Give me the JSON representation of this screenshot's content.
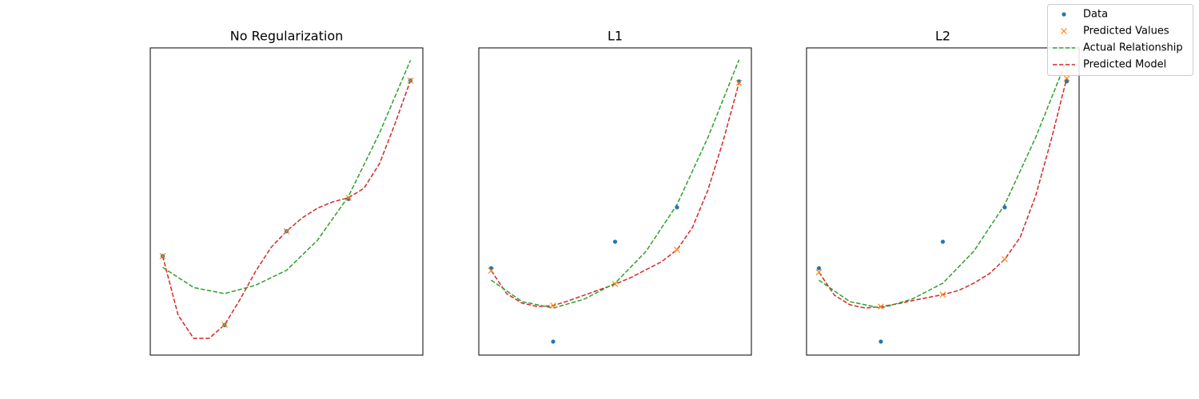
{
  "chart_data": [
    {
      "type": "line",
      "title": "No Regularization",
      "xlim": [
        -0.05,
        1.05
      ],
      "ylim": [
        -0.06,
        1.004
      ],
      "series": [
        {
          "name": "Data",
          "color": "#1f77b4",
          "marker": "o",
          "linestyle": "none",
          "x": [
            0,
            0.25,
            0.5,
            0.75,
            1
          ],
          "values": [
            0.283,
            0.044,
            0.369,
            0.481,
            0.891
          ]
        },
        {
          "name": "Predicted Values",
          "color": "#ff7f0e",
          "marker": "x",
          "linestyle": "none",
          "x": [
            0,
            0.25,
            0.5,
            0.75,
            1
          ],
          "values": [
            0.283,
            0.045,
            0.369,
            0.485,
            0.891
          ]
        },
        {
          "name": "Actual Relationship",
          "color": "#2ca02c",
          "marker": "none",
          "linestyle": "dashed",
          "x": [
            0,
            0.125,
            0.25,
            0.375,
            0.5,
            0.625,
            0.75,
            0.875,
            1
          ],
          "values": [
            0.244,
            0.174,
            0.153,
            0.182,
            0.234,
            0.338,
            0.49,
            0.709,
            0.961
          ]
        },
        {
          "name": "Predicted Model",
          "color": "#d62728",
          "marker": "none",
          "linestyle": "dashed",
          "x": [
            0,
            0.0625,
            0.125,
            0.1875,
            0.25,
            0.3125,
            0.375,
            0.4375,
            0.5,
            0.5625,
            0.625,
            0.6875,
            0.75,
            0.8125,
            0.875,
            0.9375,
            1
          ],
          "values": [
            0.283,
            0.078,
            -0.002,
            -0.002,
            0.045,
            0.133,
            0.23,
            0.313,
            0.369,
            0.415,
            0.449,
            0.471,
            0.485,
            0.518,
            0.603,
            0.741,
            0.891
          ]
        }
      ]
    },
    {
      "type": "line",
      "title": "L1",
      "xlim": [
        -0.05,
        1.05
      ],
      "ylim": [
        0,
        1
      ],
      "series": [
        {
          "name": "Data",
          "color": "#1f77b4",
          "marker": "o",
          "linestyle": "none",
          "x": [
            0,
            0.25,
            0.5,
            0.75,
            1
          ],
          "values": [
            0.283,
            0.044,
            0.369,
            0.481,
            0.891
          ]
        },
        {
          "name": "Predicted Values",
          "color": "#ff7f0e",
          "marker": "x",
          "linestyle": "none",
          "x": [
            0,
            0.25,
            0.5,
            0.75,
            1
          ],
          "values": [
            0.275,
            0.161,
            0.231,
            0.343,
            0.886
          ]
        },
        {
          "name": "Actual Relationship",
          "color": "#2ca02c",
          "marker": "none",
          "linestyle": "dashed",
          "x": [
            0,
            0.125,
            0.25,
            0.375,
            0.5,
            0.625,
            0.75,
            0.875,
            1
          ],
          "values": [
            0.244,
            0.174,
            0.153,
            0.182,
            0.234,
            0.338,
            0.49,
            0.709,
            0.961
          ]
        },
        {
          "name": "Predicted Model",
          "color": "#d62728",
          "marker": "none",
          "linestyle": "dashed",
          "x": [
            0,
            0.0625,
            0.125,
            0.1875,
            0.25,
            0.3125,
            0.375,
            0.4375,
            0.5,
            0.5625,
            0.625,
            0.6875,
            0.75,
            0.8125,
            0.875,
            0.9375,
            1
          ],
          "values": [
            0.275,
            0.2,
            0.169,
            0.158,
            0.161,
            0.177,
            0.195,
            0.213,
            0.231,
            0.252,
            0.278,
            0.304,
            0.343,
            0.416,
            0.538,
            0.701,
            0.886
          ]
        }
      ]
    },
    {
      "type": "line",
      "title": "L2",
      "xlim": [
        -0.05,
        1.05
      ],
      "ylim": [
        0,
        1
      ],
      "series": [
        {
          "name": "Data",
          "color": "#1f77b4",
          "marker": "o",
          "linestyle": "none",
          "x": [
            0,
            0.25,
            0.5,
            0.75,
            1
          ],
          "values": [
            0.283,
            0.044,
            0.369,
            0.481,
            0.891
          ]
        },
        {
          "name": "Predicted Values",
          "color": "#ff7f0e",
          "marker": "x",
          "linestyle": "none",
          "x": [
            0,
            0.25,
            0.5,
            0.75,
            1
          ],
          "values": [
            0.27,
            0.158,
            0.197,
            0.312,
            0.901
          ]
        },
        {
          "name": "Actual Relationship",
          "color": "#2ca02c",
          "marker": "none",
          "linestyle": "dashed",
          "x": [
            0,
            0.125,
            0.25,
            0.375,
            0.5,
            0.625,
            0.75,
            0.875,
            1
          ],
          "values": [
            0.244,
            0.174,
            0.153,
            0.182,
            0.234,
            0.338,
            0.49,
            0.709,
            0.961
          ]
        },
        {
          "name": "Predicted Model",
          "color": "#d62728",
          "marker": "none",
          "linestyle": "dashed",
          "x": [
            0,
            0.0625,
            0.125,
            0.1875,
            0.25,
            0.3125,
            0.375,
            0.4375,
            0.5,
            0.5625,
            0.625,
            0.6875,
            0.75,
            0.8125,
            0.875,
            0.9375,
            1
          ],
          "values": [
            0.27,
            0.195,
            0.164,
            0.153,
            0.158,
            0.166,
            0.177,
            0.187,
            0.197,
            0.21,
            0.234,
            0.265,
            0.312,
            0.384,
            0.519,
            0.701,
            0.901
          ]
        }
      ]
    }
  ]
}
